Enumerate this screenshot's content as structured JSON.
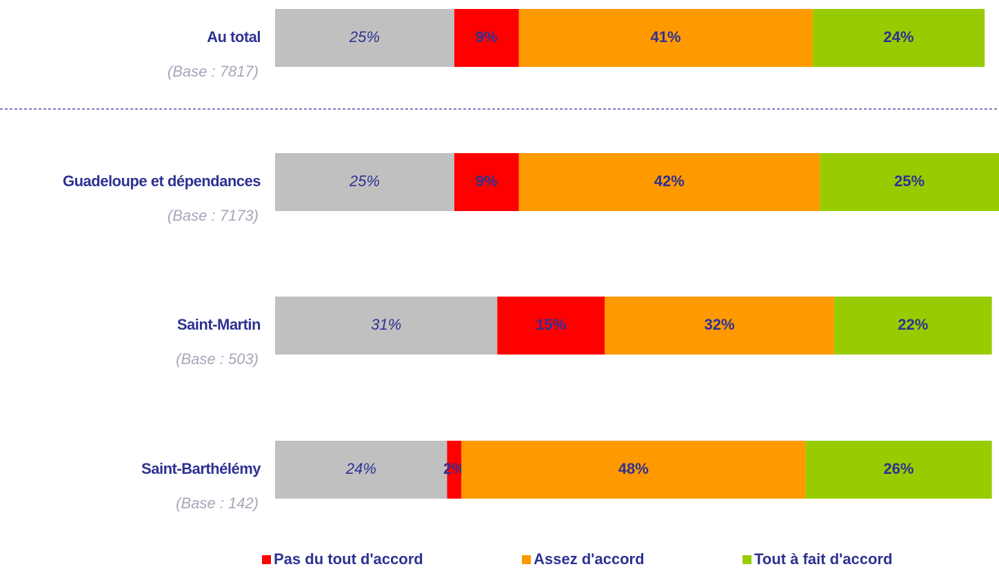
{
  "chart_data": {
    "type": "stacked-bar-horizontal",
    "categories": [
      "Au total",
      "Guadeloupe et dépendances",
      "Saint-Martin",
      "Saint-Barthélémy"
    ],
    "bases": [
      "(Base : 7817)",
      "(Base : 7173)",
      "(Base : 503)",
      "(Base : 142)"
    ],
    "xlim": [
      0,
      101
    ],
    "series": [
      {
        "color": "#c0c0c0",
        "values": [
          25,
          25,
          31,
          24
        ],
        "value_labels": [
          "25%",
          "25%",
          "31%",
          "24%"
        ]
      },
      {
        "name": "Pas du tout d'accord",
        "color": "#ff0000",
        "values": [
          9,
          9,
          15,
          2
        ],
        "value_labels": [
          "9%",
          "9%",
          "15%",
          "2%"
        ]
      },
      {
        "name": "Assez d'accord",
        "color": "#ff9900",
        "values": [
          41,
          42,
          32,
          48
        ],
        "value_labels": [
          "41%",
          "42%",
          "32%",
          "48%"
        ]
      },
      {
        "name": "Tout à fait d'accord",
        "color": "#99cc00",
        "values": [
          24,
          25,
          22,
          26
        ],
        "value_labels": [
          "24%",
          "25%",
          "22%",
          "26%"
        ]
      }
    ]
  }
}
